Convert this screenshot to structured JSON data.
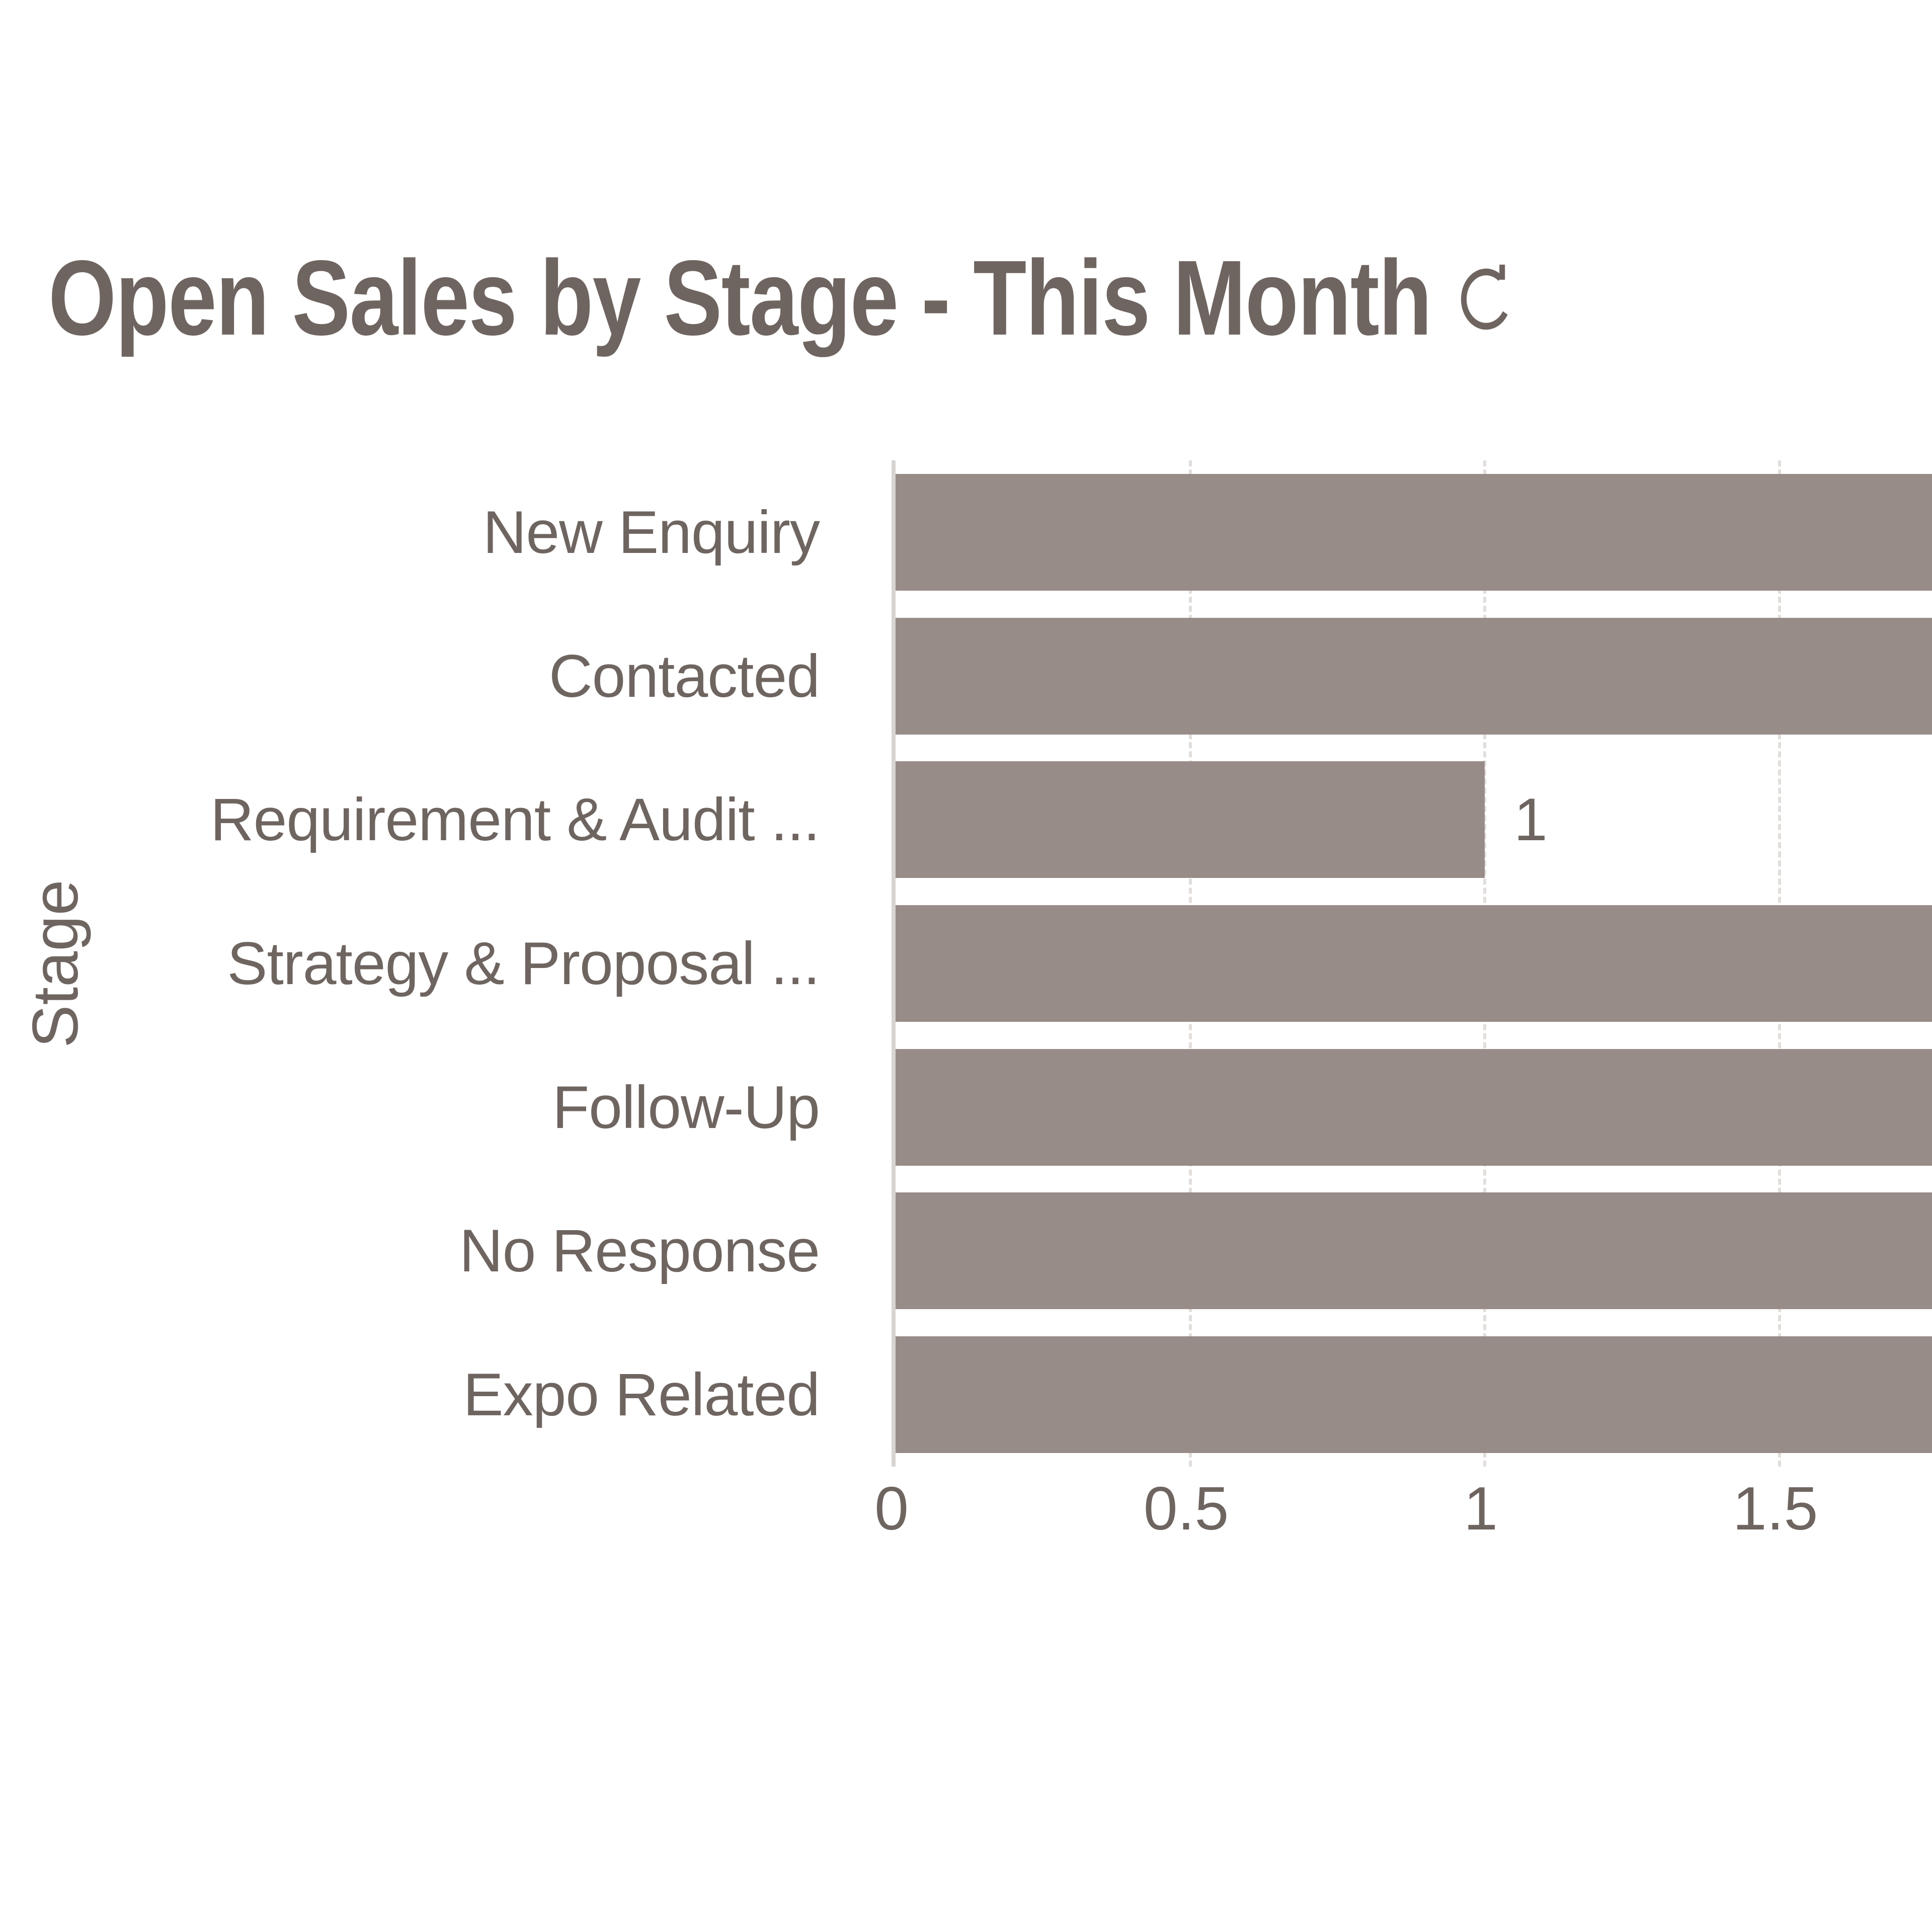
{
  "widget": {
    "title": "Open Sales by Stage - This Month",
    "refresh_icon": "refresh"
  },
  "colors": {
    "background": "#FFFFFF",
    "bar": "#988C88",
    "text": "#6F6560",
    "axis_line": "#D8D4D2",
    "gridline": "#E2DEDB"
  },
  "chart_data": {
    "type": "bar",
    "orientation": "horizontal",
    "title": "Open Sales by Stage - This Month",
    "xlabel": "",
    "ylabel": "Stage",
    "categories": [
      "New Enquiry",
      "Contacted",
      "Requirement & Audit ...",
      "Strategy & Proposal ...",
      "Follow-Up",
      "No Response",
      "Expo Related"
    ],
    "values": [
      2,
      2,
      1,
      2,
      2,
      2,
      2
    ],
    "bar_labels": [
      "",
      "",
      "1",
      "",
      "",
      "",
      ""
    ],
    "xticks": [
      0,
      0.5,
      1,
      1.5
    ],
    "xtick_labels": [
      "0",
      "0.5",
      "1",
      "1.5"
    ],
    "xlim_visible": [
      0,
      1.766
    ],
    "grid": "dashed-vertical",
    "legend": "none",
    "bars_clipped_at_right_edge": true
  }
}
